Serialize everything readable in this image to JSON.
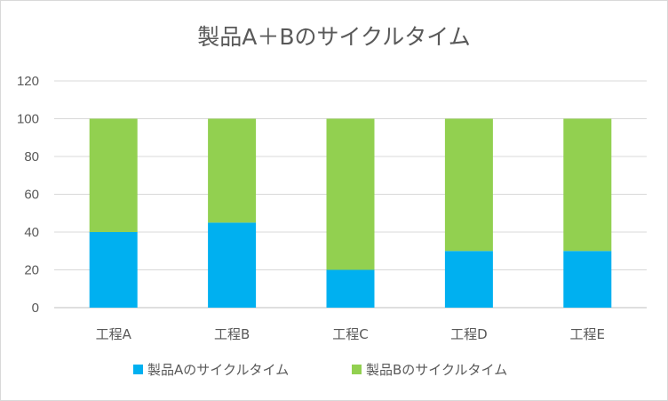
{
  "chart_data": {
    "type": "bar",
    "stacked": true,
    "title": "製品A＋Bのサイクルタイム",
    "xlabel": "",
    "ylabel": "",
    "categories": [
      "工程A",
      "工程B",
      "工程C",
      "工程D",
      "工程E"
    ],
    "ylim": [
      0,
      120
    ],
    "yticks": [
      0,
      20,
      40,
      60,
      80,
      100,
      120
    ],
    "grid": true,
    "legend_position": "bottom",
    "series": [
      {
        "name": "製品Aのサイクルタイム",
        "color": "#00b0f0",
        "values": [
          40,
          45,
          20,
          30,
          30
        ]
      },
      {
        "name": "製品Bのサイクルタイム",
        "color": "#92d050",
        "values": [
          60,
          55,
          80,
          70,
          70
        ]
      }
    ]
  }
}
